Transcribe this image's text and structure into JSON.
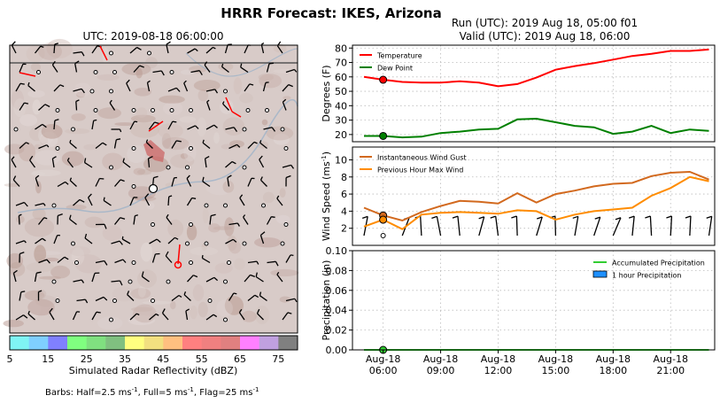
{
  "figure": {
    "title": "HRRR Forecast: IKES, Arizona",
    "run_label": "Run (UTC): 2019 Aug 18, 05:00 f01",
    "valid_label": "Valid (UTC): 2019 Aug 18, 06:00",
    "barbs_note_prefix": "Barbs: Half=2.5 ms",
    "barbs_note_mid1": ", Full=5 ms",
    "barbs_note_mid2": ", Flag=25 ms",
    "barbs_note_sup": "-1"
  },
  "map": {
    "title": "UTC: 2019-08-18 06:00:00",
    "colorbar_label": "Simulated Radar Reflectivity (dBZ)",
    "colorbar_ticks": [
      "5",
      "15",
      "25",
      "35",
      "45",
      "55",
      "65",
      "75"
    ],
    "colorbar_colors": [
      "#7ff4f4",
      "#7fcfff",
      "#8080ff",
      "#80ff80",
      "#80e080",
      "#80c080",
      "#ffff80",
      "#f2e080",
      "#ffc080",
      "#ff8080",
      "#f08080",
      "#e08080",
      "#ff80ff",
      "#c0a0e0",
      "#808080"
    ],
    "colors": {
      "terrain": "#d8cbc8",
      "radar_echo": "#cc6666",
      "barb": "#000000",
      "station": "#ffffff"
    }
  },
  "chart_data": [
    {
      "type": "line",
      "ylabel": "Degrees (F)",
      "ylim": [
        15,
        82
      ],
      "yticks": [
        "20",
        "30",
        "40",
        "50",
        "60",
        "70",
        "80"
      ],
      "x": [
        0,
        1,
        2,
        3,
        4,
        5,
        6,
        7,
        8,
        9,
        10,
        11,
        12,
        13,
        14,
        15,
        16,
        17,
        18
      ],
      "series": [
        {
          "name": "Temperature",
          "color": "#ff0000",
          "values": [
            60,
            58,
            56.5,
            56,
            56,
            57,
            56,
            53.5,
            55,
            59.5,
            65,
            67.5,
            69.5,
            72,
            74.5,
            76,
            78,
            78,
            79
          ]
        },
        {
          "name": "Dew Point",
          "color": "#008000",
          "values": [
            19,
            19,
            18,
            18.5,
            21,
            22,
            23.5,
            24,
            30.5,
            31,
            28.5,
            26,
            25,
            20.5,
            22,
            26,
            21,
            23.5,
            22.5
          ]
        }
      ],
      "marker_index": 1,
      "legend": "top-left",
      "grid": true
    },
    {
      "type": "line",
      "ylabel": "Wind Speed (ms",
      "ylabel_sup": "-1",
      "ylim": [
        0,
        11.5
      ],
      "yticks": [
        "2",
        "4",
        "6",
        "8",
        "10"
      ],
      "x": [
        0,
        1,
        2,
        3,
        4,
        5,
        6,
        7,
        8,
        9,
        10,
        11,
        12,
        13,
        14,
        15,
        16,
        17,
        18
      ],
      "series": [
        {
          "name": "Instantaneous Wind Gust",
          "color": "#d2691e",
          "values": [
            4.4,
            3.5,
            2.9,
            3.9,
            4.6,
            5.2,
            5.1,
            4.9,
            6.1,
            5.0,
            6.0,
            6.4,
            6.9,
            7.2,
            7.3,
            8.1,
            8.5,
            8.6,
            7.7
          ]
        },
        {
          "name": "Previous Hour Max Wind",
          "color": "#ff8c00",
          "values": [
            2.2,
            3.0,
            1.9,
            3.6,
            3.8,
            3.9,
            3.8,
            3.7,
            4.1,
            4.0,
            3.0,
            3.6,
            4.0,
            4.2,
            4.4,
            5.8,
            6.7,
            8.0,
            7.5
          ]
        }
      ],
      "marker_index": 1,
      "legend": "top-left",
      "grid": true
    },
    {
      "type": "bar",
      "ylabel": "Precipitation (in)",
      "ylim": [
        0,
        0.1
      ],
      "yticks": [
        "0.00",
        "0.02",
        "0.04",
        "0.06",
        "0.08",
        "0.10"
      ],
      "x": [
        0,
        1,
        2,
        3,
        4,
        5,
        6,
        7,
        8,
        9,
        10,
        11,
        12,
        13,
        14,
        15,
        16,
        17,
        18
      ],
      "xticks": [
        {
          "x": 1,
          "line1": "Aug-18",
          "line2": "06:00"
        },
        {
          "x": 4,
          "line1": "Aug-18",
          "line2": "09:00"
        },
        {
          "x": 7,
          "line1": "Aug-18",
          "line2": "12:00"
        },
        {
          "x": 10,
          "line1": "Aug-18",
          "line2": "15:00"
        },
        {
          "x": 13,
          "line1": "Aug-18",
          "line2": "18:00"
        },
        {
          "x": 16,
          "line1": "Aug-18",
          "line2": "21:00"
        }
      ],
      "series": [
        {
          "name": "Accumulated Precipitation",
          "color": "#32cd32",
          "values": [
            0,
            0,
            0,
            0,
            0,
            0,
            0,
            0,
            0,
            0,
            0,
            0,
            0,
            0,
            0,
            0,
            0,
            0,
            0
          ]
        },
        {
          "name": "1 hour Precipitation",
          "color": "#1e90ff",
          "values": [
            0,
            0,
            0,
            0,
            0,
            0,
            0,
            0,
            0,
            0,
            0,
            0,
            0,
            0,
            0,
            0,
            0,
            0,
            0
          ]
        }
      ],
      "marker_index": 1,
      "legend": "top-right",
      "grid": true
    }
  ]
}
